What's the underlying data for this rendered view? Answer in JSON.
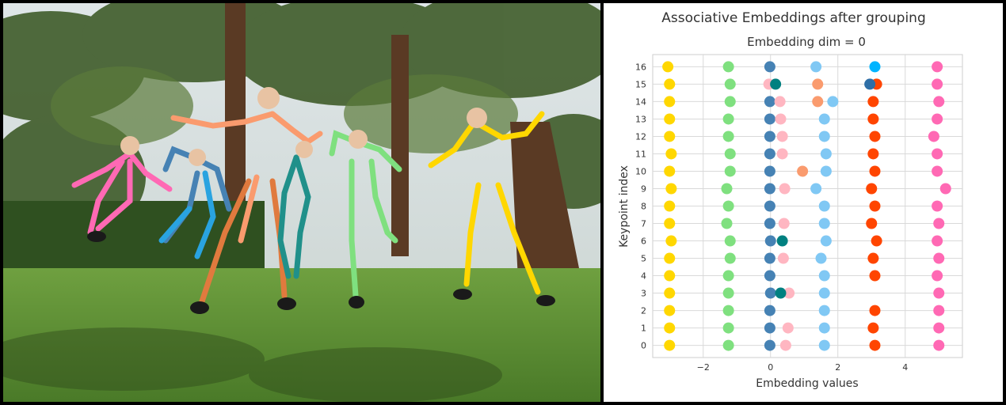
{
  "chart_data": {
    "type": "scatter",
    "title": "Associative Embeddings after grouping",
    "subtitle": "Embedding dim = 0",
    "xlabel": "Embedding values",
    "ylabel": "Keypoint index",
    "xlim": [
      -3.5,
      5.7
    ],
    "ylim": [
      -0.7,
      16.7
    ],
    "x_ticks": [
      -2,
      0,
      2,
      4
    ],
    "y_ticks": [
      0,
      1,
      2,
      3,
      4,
      5,
      6,
      7,
      8,
      9,
      10,
      11,
      12,
      13,
      14,
      15,
      16
    ],
    "grid": true,
    "series": [
      {
        "color": "#ffd700",
        "points": [
          [
            -3.0,
            0
          ],
          [
            -3.0,
            1
          ],
          [
            -3.0,
            2
          ],
          [
            -3.0,
            3
          ],
          [
            -3.0,
            4
          ],
          [
            -3.0,
            5
          ],
          [
            -2.95,
            6
          ],
          [
            -3.0,
            7
          ],
          [
            -3.0,
            8
          ],
          [
            -2.95,
            9
          ],
          [
            -3.0,
            10
          ],
          [
            -2.95,
            11
          ],
          [
            -3.0,
            12
          ],
          [
            -3.0,
            13
          ],
          [
            -3.0,
            14
          ],
          [
            -3.0,
            15
          ],
          [
            -3.05,
            16
          ]
        ]
      },
      {
        "color": "#7fe07f",
        "points": [
          [
            -1.25,
            0
          ],
          [
            -1.25,
            1
          ],
          [
            -1.25,
            2
          ],
          [
            -1.25,
            3
          ],
          [
            -1.25,
            4
          ],
          [
            -1.2,
            5
          ],
          [
            -1.2,
            6
          ],
          [
            -1.3,
            7
          ],
          [
            -1.25,
            8
          ],
          [
            -1.3,
            9
          ],
          [
            -1.2,
            10
          ],
          [
            -1.2,
            11
          ],
          [
            -1.25,
            12
          ],
          [
            -1.25,
            13
          ],
          [
            -1.2,
            14
          ],
          [
            -1.2,
            15
          ],
          [
            -1.25,
            16
          ]
        ]
      },
      {
        "color": "#4682b4",
        "points": [
          [
            -0.02,
            0
          ],
          [
            -0.02,
            1
          ],
          [
            -0.02,
            2
          ],
          [
            0.0,
            3
          ],
          [
            -0.02,
            4
          ],
          [
            -0.02,
            5
          ],
          [
            0.0,
            6
          ],
          [
            -0.02,
            7
          ],
          [
            -0.02,
            8
          ],
          [
            -0.02,
            9
          ],
          [
            -0.02,
            10
          ],
          [
            -0.02,
            11
          ],
          [
            -0.02,
            12
          ],
          [
            -0.02,
            13
          ],
          [
            -0.02,
            14
          ],
          [
            -0.02,
            16
          ]
        ]
      },
      {
        "color": "#ffb6c1",
        "points": [
          [
            0.45,
            0
          ],
          [
            0.52,
            1
          ],
          [
            0.55,
            3
          ],
          [
            0.38,
            5
          ],
          [
            0.4,
            7
          ],
          [
            0.42,
            9
          ],
          [
            0.35,
            11
          ],
          [
            0.35,
            12
          ],
          [
            0.3,
            13
          ],
          [
            0.28,
            14
          ],
          [
            -0.05,
            15
          ]
        ]
      },
      {
        "color": "#80c8f4",
        "points": [
          [
            1.6,
            0
          ],
          [
            1.6,
            1
          ],
          [
            1.6,
            2
          ],
          [
            1.6,
            3
          ],
          [
            1.6,
            4
          ],
          [
            1.5,
            5
          ],
          [
            1.65,
            6
          ],
          [
            1.6,
            7
          ],
          [
            1.6,
            8
          ],
          [
            1.35,
            9
          ],
          [
            1.65,
            10
          ],
          [
            1.65,
            11
          ],
          [
            1.6,
            12
          ],
          [
            1.6,
            13
          ],
          [
            1.85,
            14
          ],
          [
            1.35,
            16
          ]
        ]
      },
      {
        "color": "#fa9b6e",
        "points": [
          [
            0.95,
            10
          ],
          [
            1.4,
            14
          ],
          [
            1.4,
            15
          ]
        ]
      },
      {
        "color": "#008080",
        "points": [
          [
            0.3,
            3
          ],
          [
            0.35,
            6
          ],
          [
            0.15,
            15
          ]
        ]
      },
      {
        "color": "#ff4500",
        "points": [
          [
            3.1,
            0
          ],
          [
            3.05,
            1
          ],
          [
            3.1,
            2
          ],
          [
            3.1,
            4
          ],
          [
            3.05,
            5
          ],
          [
            3.15,
            6
          ],
          [
            3.0,
            7
          ],
          [
            3.1,
            8
          ],
          [
            3.0,
            9
          ],
          [
            3.1,
            10
          ],
          [
            3.05,
            11
          ],
          [
            3.1,
            12
          ],
          [
            3.05,
            13
          ],
          [
            3.05,
            14
          ],
          [
            3.15,
            15
          ]
        ]
      },
      {
        "color": "#2e6ea6",
        "points": [
          [
            2.95,
            15
          ]
        ]
      },
      {
        "color": "#00b4ff",
        "points": [
          [
            3.1,
            16
          ]
        ]
      },
      {
        "color": "#ff69b4",
        "points": [
          [
            5.0,
            0
          ],
          [
            5.0,
            1
          ],
          [
            5.0,
            2
          ],
          [
            5.0,
            3
          ],
          [
            4.95,
            4
          ],
          [
            5.0,
            5
          ],
          [
            4.95,
            6
          ],
          [
            5.0,
            7
          ],
          [
            4.95,
            8
          ],
          [
            5.2,
            9
          ],
          [
            4.95,
            10
          ],
          [
            4.95,
            11
          ],
          [
            4.85,
            12
          ],
          [
            4.95,
            13
          ],
          [
            5.0,
            14
          ],
          [
            4.95,
            15
          ],
          [
            4.95,
            16
          ]
        ]
      }
    ]
  }
}
